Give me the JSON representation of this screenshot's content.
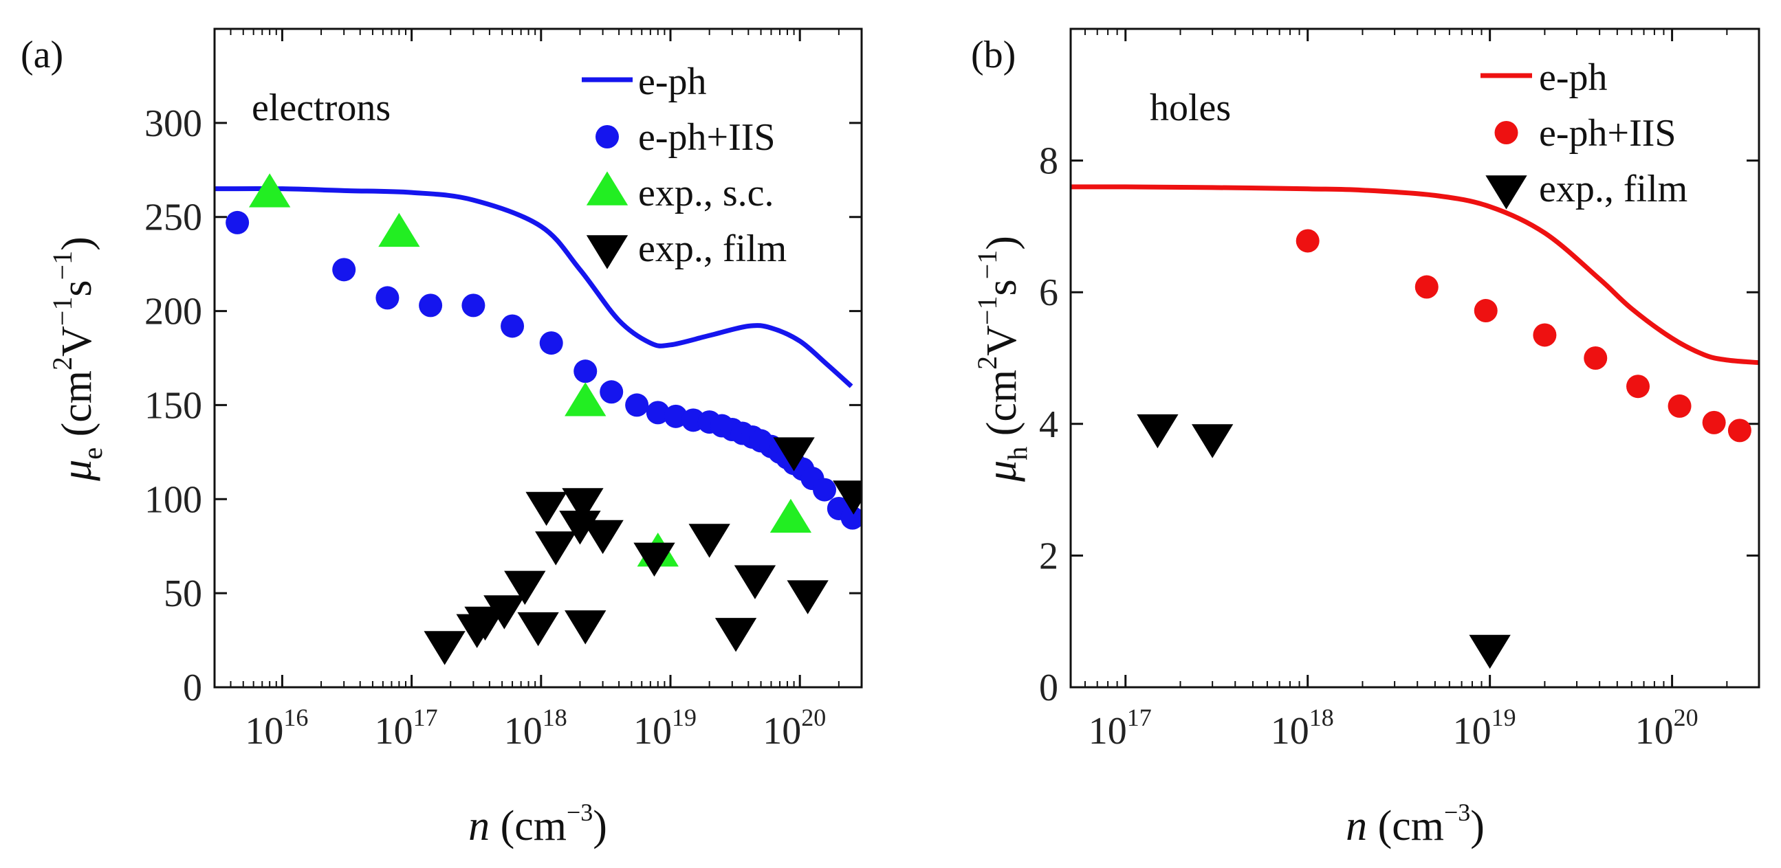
{
  "chart_data": [
    {
      "type": "scatter",
      "panel": "(a)",
      "carrier": "electrons",
      "xscale": "log",
      "xlim": [
        3000000000000000.0,
        3e+20
      ],
      "ylim": [
        0,
        350
      ],
      "xticks": [
        {
          "value": 1e+16,
          "base": "10",
          "exp": "16"
        },
        {
          "value": 1e+17,
          "base": "10",
          "exp": "17"
        },
        {
          "value": 1e+18,
          "base": "10",
          "exp": "18"
        },
        {
          "value": 1e+19,
          "base": "10",
          "exp": "19"
        },
        {
          "value": 1e+20,
          "base": "10",
          "exp": "20"
        }
      ],
      "yticks": [
        0,
        50,
        100,
        150,
        200,
        250,
        300
      ],
      "xlabel": {
        "var": "n",
        "unit": " (cm",
        "sup": "−3",
        "close": ")"
      },
      "ylabel": {
        "var": "μ",
        "sub": "e",
        "unit1": " (cm",
        "sup1": "2",
        "unit2": "V",
        "sup2": "−1",
        "unit3": "s",
        "sup3": "−1",
        "close": ")"
      },
      "legend_position": "top-right",
      "series": [
        {
          "name": "e-ph",
          "style": "line",
          "color": "#1515ee",
          "x": [
            3000000000000000.0,
            1e+16,
            3e+16,
            1e+17,
            3e+17,
            1e+18,
            2e+18,
            4e+18,
            7e+18,
            1e+19,
            2e+19,
            4e+19,
            6e+19,
            1e+20,
            1.6e+20,
            2.5e+20
          ],
          "y": [
            265,
            265,
            264,
            263,
            259,
            245,
            222,
            195,
            183,
            182,
            187,
            192,
            191,
            184,
            172,
            160
          ]
        },
        {
          "name": "e-ph+IIS",
          "style": "circle",
          "color": "#1515ee",
          "x": [
            4500000000000000.0,
            3e+16,
            6.5e+16,
            1.4e+17,
            3e+17,
            6e+17,
            1.2e+18,
            2.2e+18,
            3.5e+18,
            5.5e+18,
            8e+18,
            1.1e+19,
            1.5e+19,
            2e+19,
            2.5e+19,
            3e+19,
            3.6e+19,
            4.3e+19,
            5e+19,
            6e+19,
            7e+19,
            8e+19,
            9e+19,
            1.05e+20,
            1.25e+20,
            1.55e+20,
            2e+20,
            2.55e+20
          ],
          "y": [
            247,
            222,
            207,
            203,
            203,
            192,
            183,
            168,
            157,
            150,
            146,
            144,
            142,
            141,
            139,
            137,
            135,
            133,
            131,
            128,
            125,
            122,
            119,
            116,
            111,
            105,
            95,
            90
          ]
        },
        {
          "name": "exp., s.c.",
          "style": "triangle-up",
          "color": "#22ee22",
          "x": [
            8000000000000000.0,
            8e+16,
            2.2e+18,
            8e+18,
            8.5e+19
          ],
          "y": [
            262,
            241,
            151,
            71,
            89
          ]
        },
        {
          "name": "exp., film",
          "style": "triangle-down",
          "color": "#000000",
          "x": [
            1.8e+17,
            3.2e+17,
            3.7e+17,
            5.2e+17,
            7.5e+17,
            9.5e+17,
            1.1e+18,
            1.3e+18,
            2e+18,
            2.1e+18,
            2.2e+18,
            3e+18,
            7.5e+18,
            2e+19,
            3.2e+19,
            4.5e+19,
            9e+19,
            1.15e+20,
            2.6e+20
          ],
          "y": [
            23,
            32,
            36,
            42,
            55,
            33,
            97,
            76,
            87,
            99,
            34,
            82,
            70,
            80,
            30,
            58,
            126,
            50,
            103
          ]
        }
      ]
    },
    {
      "type": "scatter",
      "panel": "(b)",
      "carrier": "holes",
      "xscale": "log",
      "xlim": [
        5e+16,
        3e+20
      ],
      "ylim": [
        0,
        10
      ],
      "xticks": [
        {
          "value": 1e+17,
          "base": "10",
          "exp": "17"
        },
        {
          "value": 1e+18,
          "base": "10",
          "exp": "18"
        },
        {
          "value": 1e+19,
          "base": "10",
          "exp": "19"
        },
        {
          "value": 1e+20,
          "base": "10",
          "exp": "20"
        }
      ],
      "yticks": [
        0,
        2,
        4,
        6,
        8
      ],
      "xlabel": {
        "var": "n",
        "unit": " (cm",
        "sup": "−3",
        "close": ")"
      },
      "ylabel": {
        "var": "μ",
        "sub": "h",
        "unit1": " (cm",
        "sup1": "2",
        "unit2": "V",
        "sup2": "−1",
        "unit3": "s",
        "sup3": "−1",
        "close": ")"
      },
      "legend_position": "top-right",
      "series": [
        {
          "name": "e-ph",
          "style": "line",
          "color": "#ee1111",
          "x": [
            5e+16,
            1e+17,
            3e+17,
            1e+18,
            2e+18,
            5e+18,
            1e+19,
            2e+19,
            4e+19,
            6e+19,
            1e+20,
            1.5e+20,
            2e+20,
            3e+20
          ],
          "y": [
            7.6,
            7.6,
            7.59,
            7.57,
            7.55,
            7.47,
            7.3,
            6.9,
            6.2,
            5.75,
            5.3,
            5.05,
            4.97,
            4.93
          ]
        },
        {
          "name": "e-ph+IIS",
          "style": "circle",
          "color": "#ee1111",
          "x": [
            1e+18,
            4.5e+18,
            9.5e+18,
            2e+19,
            3.8e+19,
            6.5e+19,
            1.1e+20,
            1.7e+20,
            2.35e+20
          ],
          "y": [
            6.78,
            6.08,
            5.72,
            5.35,
            5.0,
            4.57,
            4.27,
            4.02,
            3.9
          ]
        },
        {
          "name": "exp., film",
          "style": "triangle-down",
          "color": "#000000",
          "x": [
            1.5e+17,
            3e+17,
            1e+19
          ],
          "y": [
            3.95,
            3.8,
            0.6
          ]
        }
      ]
    }
  ]
}
